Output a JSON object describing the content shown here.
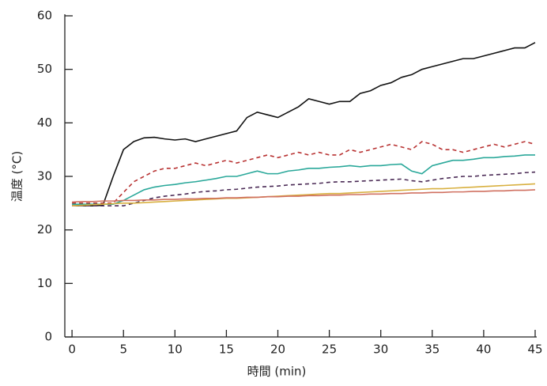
{
  "chart_data": {
    "type": "line",
    "xlabel": "時間 (min)",
    "ylabel": "温度 (°C)",
    "xlim": [
      -0.7,
      45
    ],
    "ylim": [
      0,
      60
    ],
    "xticks": [
      0,
      5,
      10,
      15,
      20,
      25,
      30,
      35,
      40,
      45
    ],
    "yticks": [
      0,
      10,
      20,
      30,
      40,
      50,
      60
    ],
    "x": [
      0,
      1,
      2,
      3,
      4,
      5,
      6,
      7,
      8,
      9,
      10,
      11,
      12,
      13,
      14,
      15,
      16,
      17,
      18,
      19,
      20,
      21,
      22,
      23,
      24,
      25,
      26,
      27,
      28,
      29,
      30,
      31,
      32,
      33,
      34,
      35,
      36,
      37,
      38,
      39,
      40,
      41,
      42,
      43,
      44,
      45
    ],
    "series": [
      {
        "color": "#111111",
        "style": "solid",
        "values": [
          24.5,
          24.5,
          24.5,
          24.6,
          30,
          35,
          36.5,
          37.2,
          37.3,
          37,
          36.8,
          37,
          36.5,
          37,
          37.5,
          38,
          38.5,
          41,
          42,
          41.5,
          41,
          42,
          43,
          44.5,
          44,
          43.5,
          44,
          44,
          45.5,
          46,
          47,
          47.5,
          48.5,
          49,
          50,
          50.5,
          51,
          51.5,
          52,
          52,
          52.5,
          53,
          53.5,
          54,
          54,
          55
        ]
      },
      {
        "color": "#b83232",
        "style": "dashed",
        "values": [
          25,
          25,
          25,
          25,
          25,
          27,
          29,
          30,
          31,
          31.5,
          31.5,
          32,
          32.5,
          32,
          32.5,
          33,
          32.5,
          33,
          33.5,
          34,
          33.5,
          34,
          34.5,
          34,
          34.5,
          34,
          34,
          35,
          34.5,
          35,
          35.5,
          36,
          35.5,
          35,
          36.5,
          36,
          35,
          35,
          34.5,
          35,
          35.5,
          36,
          35.5,
          36,
          36.5,
          36
        ]
      },
      {
        "color": "#2aa89a",
        "style": "solid",
        "values": [
          24.8,
          24.8,
          24.8,
          24.8,
          24.8,
          25.5,
          26.5,
          27.5,
          28,
          28.3,
          28.5,
          28.8,
          29,
          29.3,
          29.6,
          30,
          30,
          30.5,
          31,
          30.5,
          30.5,
          31,
          31.2,
          31.5,
          31.5,
          31.7,
          31.8,
          32,
          31.8,
          32,
          32,
          32.2,
          32.3,
          31,
          30.5,
          32,
          32.5,
          33,
          33,
          33.2,
          33.5,
          33.5,
          33.7,
          33.8,
          34,
          34
        ]
      },
      {
        "color": "#4a2a55",
        "style": "dashed",
        "values": [
          24.5,
          24.5,
          24.5,
          24.5,
          24.5,
          24.5,
          25,
          25.5,
          26,
          26.3,
          26.5,
          26.7,
          27,
          27.2,
          27.3,
          27.5,
          27.6,
          27.8,
          28,
          28.1,
          28.2,
          28.4,
          28.5,
          28.6,
          28.7,
          28.9,
          29,
          29,
          29.1,
          29.2,
          29.3,
          29.4,
          29.5,
          29.2,
          29,
          29.3,
          29.6,
          29.8,
          30,
          30,
          30.2,
          30.3,
          30.4,
          30.5,
          30.7,
          30.8
        ]
      },
      {
        "color": "#d8b040",
        "style": "solid",
        "values": [
          24.5,
          24.6,
          24.7,
          24.8,
          24.9,
          25.0,
          25.0,
          25.1,
          25.2,
          25.3,
          25.4,
          25.5,
          25.6,
          25.7,
          25.8,
          25.9,
          25.9,
          26.0,
          26.1,
          26.2,
          26.3,
          26.4,
          26.5,
          26.6,
          26.7,
          26.8,
          26.8,
          26.9,
          27.0,
          27.1,
          27.2,
          27.3,
          27.4,
          27.5,
          27.6,
          27.7,
          27.7,
          27.8,
          27.9,
          28.0,
          28.1,
          28.2,
          28.3,
          28.4,
          28.5,
          28.6
        ]
      },
      {
        "color": "#d07060",
        "style": "solid",
        "values": [
          25.2,
          25.3,
          25.3,
          25.4,
          25.4,
          25.5,
          25.5,
          25.6,
          25.6,
          25.7,
          25.7,
          25.8,
          25.8,
          25.9,
          25.9,
          26.0,
          26.0,
          26.1,
          26.1,
          26.2,
          26.2,
          26.3,
          26.3,
          26.4,
          26.4,
          26.5,
          26.5,
          26.6,
          26.6,
          26.7,
          26.7,
          26.8,
          26.8,
          26.9,
          26.9,
          27.0,
          27.0,
          27.1,
          27.1,
          27.2,
          27.2,
          27.3,
          27.3,
          27.4,
          27.4,
          27.5
        ]
      }
    ]
  }
}
